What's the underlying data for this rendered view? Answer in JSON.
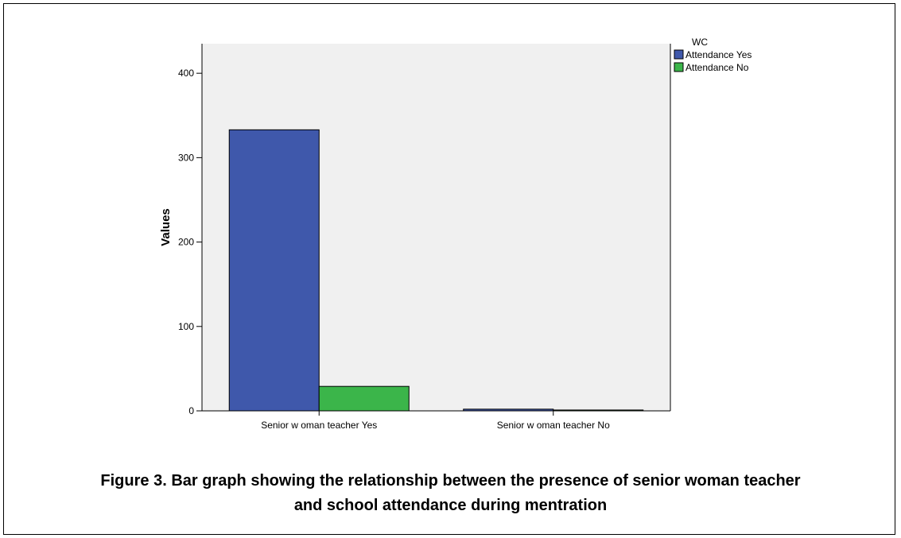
{
  "chart_data": {
    "type": "bar",
    "categories": [
      "Senior w oman teacher Yes",
      "Senior w oman teacher No"
    ],
    "series": [
      {
        "name": "Attendance Yes",
        "values": [
          333,
          2
        ],
        "color": "#3f58ab"
      },
      {
        "name": "Attendance No",
        "values": [
          29,
          1
        ],
        "color": "#3bb54a"
      }
    ],
    "ylabel": "Values",
    "ylim": [
      0,
      435
    ],
    "yticks": [
      0,
      100,
      200,
      300,
      400
    ],
    "legend_title": "WC",
    "legend_position": "top-right",
    "plot_background": "#f0f0f0",
    "grid": false
  },
  "caption": {
    "line1": "Figure 3. Bar graph showing the relationship between the presence of senior woman teacher",
    "line2": "and school attendance during mentration"
  }
}
